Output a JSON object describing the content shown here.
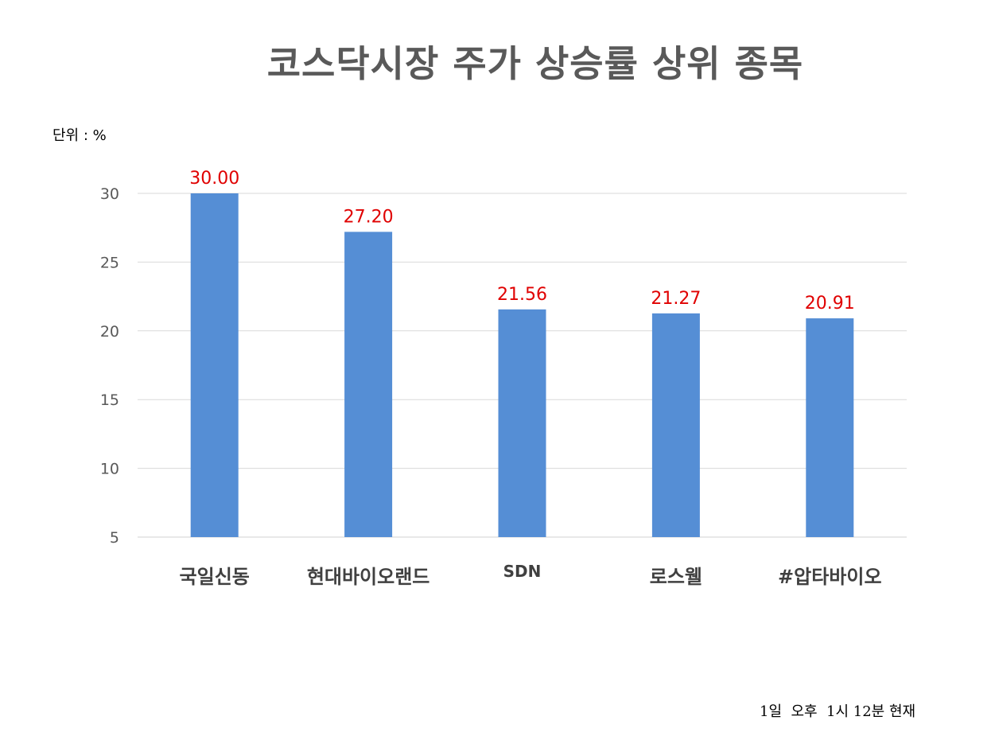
{
  "chart_data": {
    "type": "bar",
    "title": "코스닥시장 주가 상승률 상위 종목",
    "unit_label": "단위 : %",
    "footnote": "1일  오후  1시 12분 현재",
    "categories": [
      "국일신동",
      "현대바이오랜드",
      "SDN",
      "로스웰",
      "#압타바이오"
    ],
    "values": [
      30.0,
      27.2,
      21.56,
      21.27,
      20.91
    ],
    "data_labels": [
      "30.00",
      "27.20",
      "21.56",
      "21.27",
      "20.91"
    ],
    "yticks": [
      5,
      10,
      15,
      20,
      25,
      30
    ],
    "ylim": [
      5,
      30
    ],
    "grid": true,
    "legend": "none",
    "bar_color": "#558ed5",
    "data_label_color": "#e00000"
  }
}
